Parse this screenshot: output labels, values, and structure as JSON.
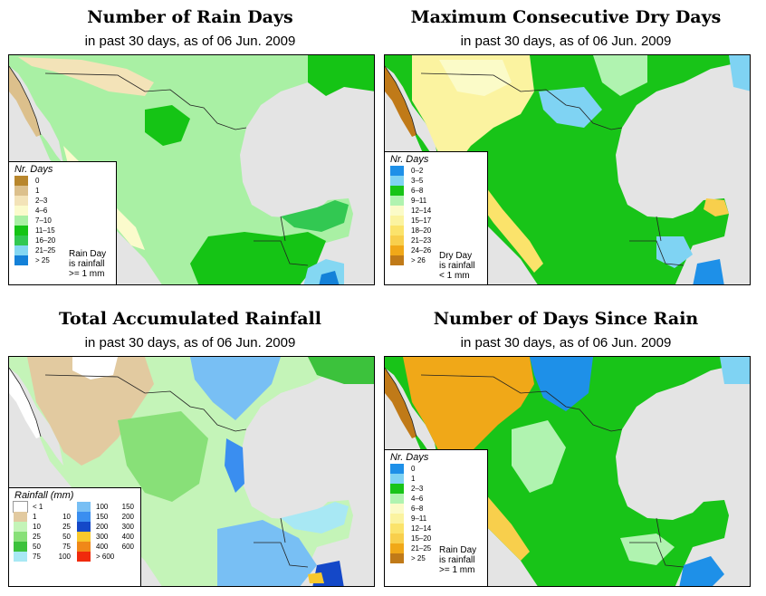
{
  "panels": [
    {
      "title": "Number of Rain Days",
      "subtitle": "in past 30 days, as of  06 Jun. 2009",
      "legend": {
        "title": "Nr. Days",
        "items": [
          {
            "label": "0",
            "color": "#b8862c"
          },
          {
            "label": "1",
            "color": "#dcc08c"
          },
          {
            "label": "2–3",
            "color": "#f3e3b8"
          },
          {
            "label": "4–6",
            "color": "#fbfbcc"
          },
          {
            "label": "7–10",
            "color": "#a9f0a4"
          },
          {
            "label": "11–15",
            "color": "#15c415"
          },
          {
            "label": "16–20",
            "color": "#32c852"
          },
          {
            "label": "21–25",
            "color": "#84d7f2"
          },
          {
            "label": "> 25",
            "color": "#1481d8"
          }
        ],
        "note": [
          "Rain Day",
          "is rainfall",
          ">= 1 mm"
        ]
      }
    },
    {
      "title": "Maximum Consecutive Dry Days",
      "subtitle": "in past 30 days, as of  06 Jun. 2009",
      "legend": {
        "title": "Nr. Days",
        "items": [
          {
            "label": "0–2",
            "color": "#1e90e8"
          },
          {
            "label": "3–5",
            "color": "#7fd3f3"
          },
          {
            "label": "6–8",
            "color": "#18c418"
          },
          {
            "label": "9–11",
            "color": "#b0f3b0"
          },
          {
            "label": "12–14",
            "color": "#fbfbc8"
          },
          {
            "label": "15–17",
            "color": "#fbf3a0"
          },
          {
            "label": "18–20",
            "color": "#fbe36b"
          },
          {
            "label": "21–23",
            "color": "#f8cf4c"
          },
          {
            "label": "24–26",
            "color": "#f0a818"
          },
          {
            "label": "> 26",
            "color": "#c07a18"
          }
        ],
        "note": [
          "Dry Day",
          "is rainfall",
          "< 1 mm"
        ]
      }
    },
    {
      "title": "Total Accumulated Rainfall",
      "subtitle": "in past 30 days, as of  06 Jun. 2009",
      "legend": {
        "title": "Rainfall (mm)",
        "items_left": [
          {
            "lo": "< 1",
            "hi": "",
            "color": "#ffffff"
          },
          {
            "lo": "1",
            "hi": "10",
            "color": "#e2caa0"
          },
          {
            "lo": "10",
            "hi": "25",
            "color": "#c4f4b8"
          },
          {
            "lo": "25",
            "hi": "50",
            "color": "#88e078"
          },
          {
            "lo": "50",
            "hi": "75",
            "color": "#3cc23c"
          },
          {
            "lo": "75",
            "hi": "100",
            "color": "#a8e8f4"
          }
        ],
        "items_right": [
          {
            "lo": "100",
            "hi": "150",
            "color": "#78bff4"
          },
          {
            "lo": "150",
            "hi": "200",
            "color": "#3a8ef0"
          },
          {
            "lo": "200",
            "hi": "300",
            "color": "#1448c8"
          },
          {
            "lo": "300",
            "hi": "400",
            "color": "#f8c82c"
          },
          {
            "lo": "400",
            "hi": "600",
            "color": "#f08818"
          },
          {
            "lo": "> 600",
            "hi": "",
            "color": "#f02a0c"
          }
        ]
      }
    },
    {
      "title": "Number of Days Since Rain",
      "subtitle": "in past 30 days, as of  06 Jun. 2009",
      "legend": {
        "title": "Nr. Days",
        "items": [
          {
            "label": "0",
            "color": "#1e90e8"
          },
          {
            "label": "1",
            "color": "#7fd3f3"
          },
          {
            "label": "2–3",
            "color": "#18c418"
          },
          {
            "label": "4–6",
            "color": "#b0f3b0"
          },
          {
            "label": "6–8",
            "color": "#fbfbc8"
          },
          {
            "label": "9–11",
            "color": "#fbf3a0"
          },
          {
            "label": "12–14",
            "color": "#fbe36b"
          },
          {
            "label": "15–20",
            "color": "#f8cf4c"
          },
          {
            "label": "21–25",
            "color": "#f0a818"
          },
          {
            "label": "> 25",
            "color": "#c07a18"
          }
        ],
        "note": [
          "Rain Day",
          "is rainfall",
          ">= 1 mm"
        ]
      }
    }
  ]
}
